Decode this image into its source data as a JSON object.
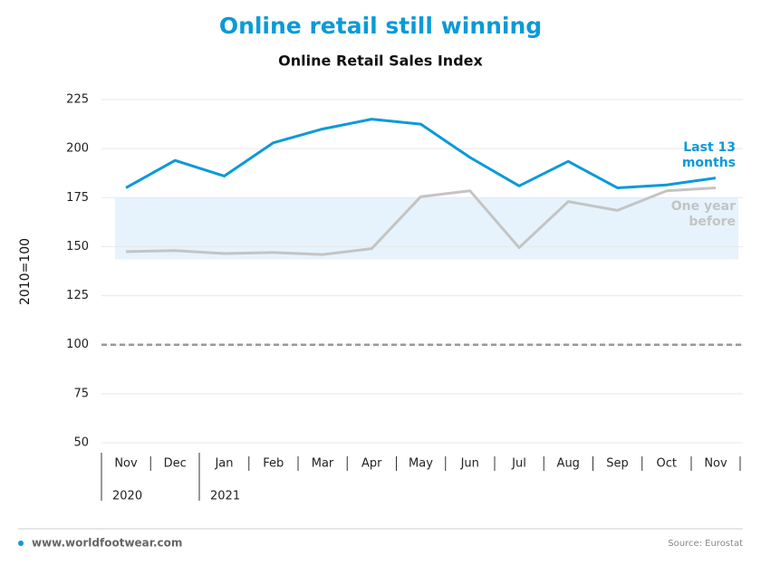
{
  "chart_data": {
    "type": "line",
    "title": "Online retail still winning",
    "subtitle": "Online Retail Sales Index",
    "y_label": "2010=100",
    "categories": [
      "Nov",
      "Dec",
      "Jan",
      "Feb",
      "Mar",
      "Apr",
      "May",
      "Jun",
      "Jul",
      "Aug",
      "Sep",
      "Oct",
      "Nov"
    ],
    "years": [
      "2020",
      "2021"
    ],
    "series": [
      {
        "name": "Last 13 months",
        "color": "#0a9ad8",
        "values": [
          180,
          194,
          186,
          203,
          210,
          215,
          212.5,
          195.5,
          181,
          193.5,
          180,
          181.5,
          185
        ]
      },
      {
        "name": "One year before",
        "color": "#c4c4c4",
        "values": [
          147.5,
          148,
          146.5,
          147,
          146,
          149,
          175.5,
          178.5,
          149.5,
          173,
          168.5,
          178.5,
          180
        ]
      }
    ],
    "band": [
      143.5,
      175
    ],
    "band_color": "#e6f3fc",
    "reference_line": 100,
    "ylim": [
      50,
      225
    ],
    "yticks": [
      50,
      75,
      100,
      125,
      150,
      175,
      200,
      225
    ],
    "grid": true,
    "footer": {
      "site": "www.worldfootwear.com",
      "source": "Source: Eurostat"
    }
  }
}
